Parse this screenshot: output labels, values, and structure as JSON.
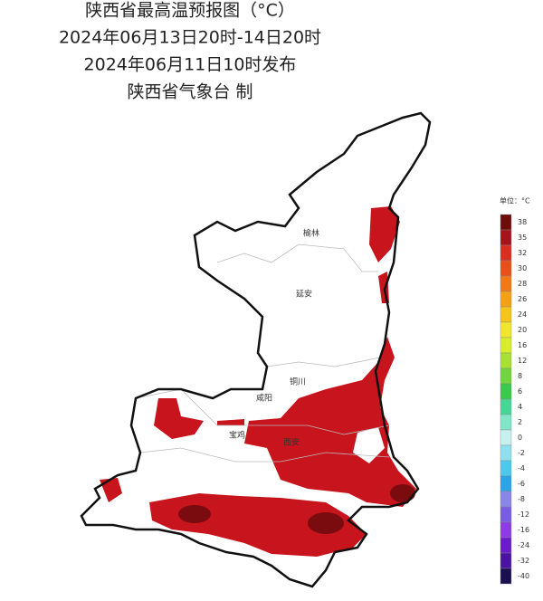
{
  "header": {
    "title": "陕西省最高温预报图（°C）",
    "period": "2024年06月13日20时-14日20时",
    "issued": "2024年06月11日10时发布",
    "publisher": "陕西省气象台 制"
  },
  "cities": [
    {
      "label": "榆林"
    },
    {
      "label": "延安"
    },
    {
      "label": "铜川"
    },
    {
      "label": "咸阳"
    },
    {
      "label": "宝鸡"
    },
    {
      "label": "西安"
    }
  ],
  "legend": {
    "unit": "单位：°C",
    "items": [
      {
        "label": "38",
        "color": "#6e0c0c"
      },
      {
        "label": "35",
        "color": "#a3141b"
      },
      {
        "label": "32",
        "color": "#d7301f"
      },
      {
        "label": "30",
        "color": "#e8501a"
      },
      {
        "label": "28",
        "color": "#f07a1a"
      },
      {
        "label": "26",
        "color": "#f5a016"
      },
      {
        "label": "24",
        "color": "#f7c31d"
      },
      {
        "label": "20",
        "color": "#f0e630"
      },
      {
        "label": "16",
        "color": "#d8ee2c"
      },
      {
        "label": "12",
        "color": "#a8e038"
      },
      {
        "label": "8",
        "color": "#6fd640"
      },
      {
        "label": "6",
        "color": "#3cc84a"
      },
      {
        "label": "4",
        "color": "#48d696"
      },
      {
        "label": "2",
        "color": "#80e6c8"
      },
      {
        "label": "0",
        "color": "#c7f0ee"
      },
      {
        "label": "-2",
        "color": "#8fe0ef"
      },
      {
        "label": "-4",
        "color": "#4fc8ee"
      },
      {
        "label": "-6",
        "color": "#2ea4e8"
      },
      {
        "label": "-8",
        "color": "#8a86e8"
      },
      {
        "label": "-12",
        "color": "#7a5ce0"
      },
      {
        "label": "-16",
        "color": "#8c3ce0"
      },
      {
        "label": "-24",
        "color": "#6a1cc8"
      },
      {
        "label": "-32",
        "color": "#4a14a0"
      },
      {
        "label": "-40",
        "color": "#1a1050"
      }
    ]
  }
}
